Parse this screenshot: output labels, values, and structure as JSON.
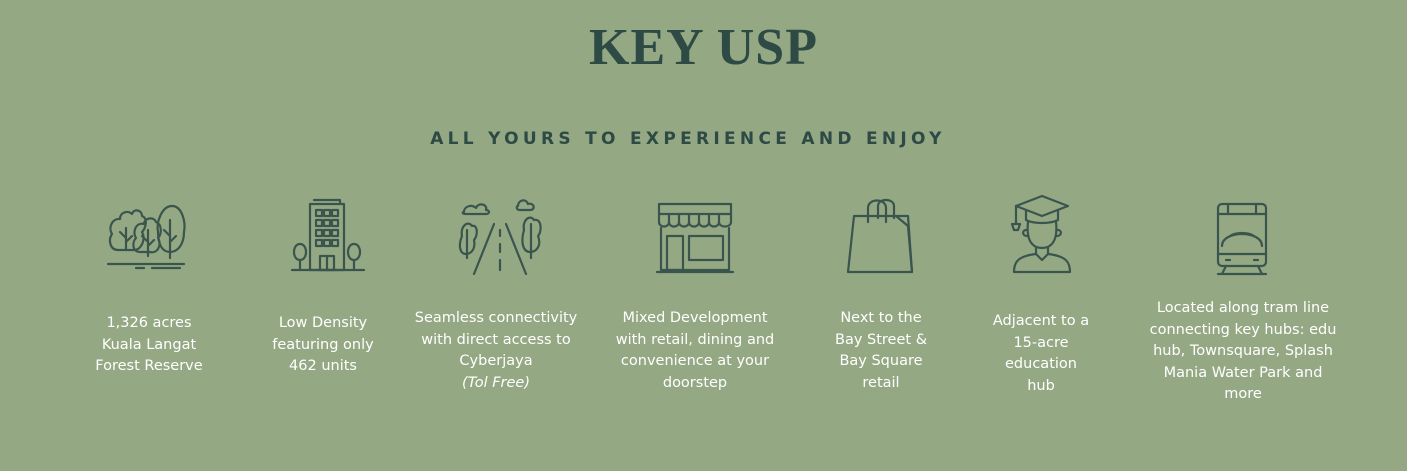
{
  "header": {
    "title": "KEY USP",
    "subtitle": "ALL YOURS TO EXPERIENCE AND ENJOY"
  },
  "colors": {
    "background": "#95a884",
    "title": "#2d4a45",
    "icon_stroke": "#3a554d",
    "caption": "#ffffff"
  },
  "features": [
    {
      "icon": "forest-icon",
      "lines": [
        "1,326 acres",
        "Kuala Langat",
        "Forest Reserve"
      ]
    },
    {
      "icon": "building-icon",
      "lines": [
        "Low Density",
        "featuring only",
        "462 units"
      ]
    },
    {
      "icon": "road-icon",
      "lines": [
        "Seamless connectivity",
        "with direct access to",
        "Cyberjaya"
      ],
      "note": "(Tol Free)"
    },
    {
      "icon": "shop-icon",
      "lines": [
        "Mixed Development",
        "with retail, dining and",
        "convenience at your",
        "doorstep"
      ]
    },
    {
      "icon": "shopping-bag-icon",
      "lines": [
        "Next to the",
        "Bay Street &",
        "Bay Square",
        "retail"
      ]
    },
    {
      "icon": "graduate-icon",
      "lines": [
        "Adjacent to a",
        "15-acre",
        "education",
        "hub"
      ]
    },
    {
      "icon": "tram-icon",
      "lines": [
        "Located along tram line",
        "connecting key hubs: edu",
        "hub, Townsquare, Splash",
        "Mania Water Park and",
        "more"
      ]
    }
  ]
}
